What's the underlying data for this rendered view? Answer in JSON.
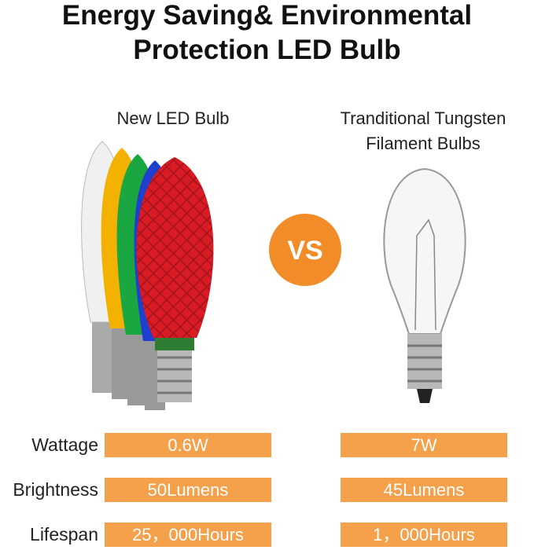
{
  "title": [
    "Energy Saving& Environmental",
    "Protection LED Bulb"
  ],
  "led_caption": "New LED Bulb",
  "tungsten_caption": [
    "Tranditional Tungsten",
    "Filament Bulbs"
  ],
  "vs": "VS",
  "rows": [
    {
      "label": "Wattage",
      "led": "0.6W",
      "traditional": "7W"
    },
    {
      "label": "Brightness",
      "led": "50Lumens",
      "traditional": "45Lumens"
    },
    {
      "label": "Lifespan",
      "led": "25，000Hours",
      "traditional": "1，000Hours"
    }
  ]
}
